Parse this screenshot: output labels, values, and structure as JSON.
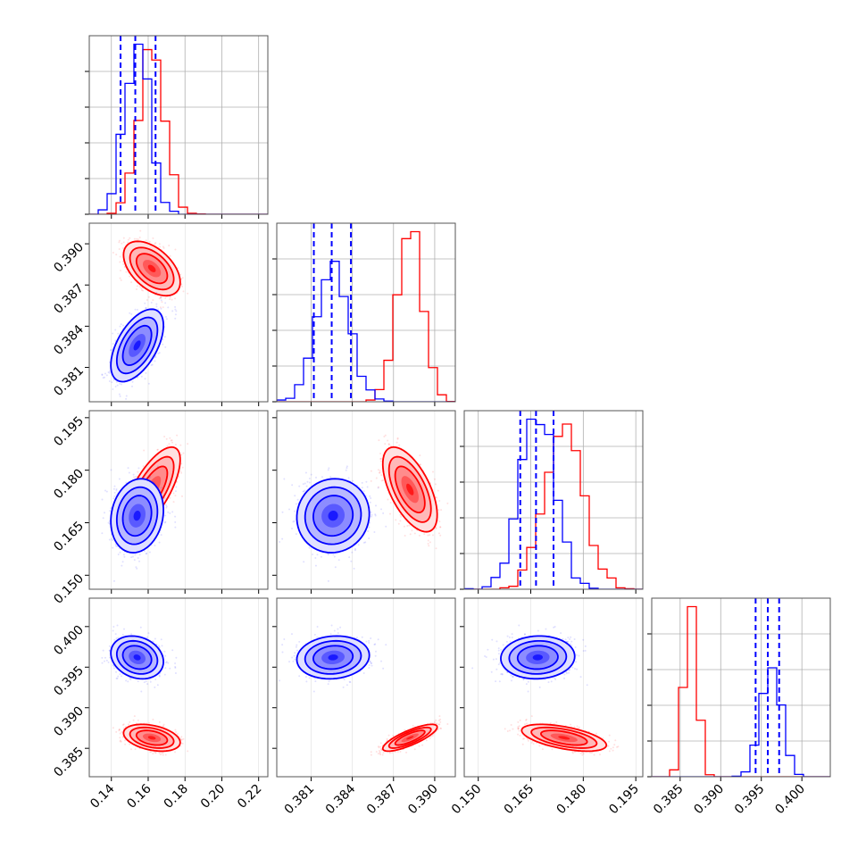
{
  "figure": {
    "type": "corner",
    "n_params": 4,
    "colors": {
      "red": "#ff0000",
      "blue": "#0000ff",
      "grid": "#b0b0b0",
      "frame": "#555555"
    }
  },
  "chart_data": {
    "type": "corner",
    "xlabels": [
      "",
      "",
      "",
      ""
    ],
    "ranges": [
      [
        0.128,
        0.225
      ],
      [
        0.3785,
        0.3915
      ],
      [
        0.146,
        0.197
      ],
      [
        0.3815,
        0.4035
      ]
    ],
    "ticks": [
      {
        "values": [
          0.14,
          0.16,
          0.18,
          0.2,
          0.22
        ],
        "labels": [
          "0.14",
          "0.16",
          "0.18",
          "0.20",
          "0.22"
        ]
      },
      {
        "values": [
          0.381,
          0.384,
          0.387,
          0.39
        ],
        "labels": [
          "0.381",
          "0.384",
          "0.387",
          "0.390"
        ]
      },
      {
        "values": [
          0.15,
          0.165,
          0.18,
          0.195
        ],
        "labels": [
          "0.150",
          "0.165",
          "0.180",
          "0.195"
        ]
      },
      {
        "values": [
          0.385,
          0.39,
          0.395,
          0.4
        ],
        "labels": [
          "0.385",
          "0.390",
          "0.395",
          "0.400"
        ]
      }
    ],
    "series": [
      {
        "color": "#ff0000",
        "mean": [
          0.162,
          0.3882,
          0.1745,
          0.3863
        ],
        "sd": [
          0.007,
          0.0009,
          0.0055,
          0.00075
        ],
        "corr": [
          [
            1,
            -0.5,
            0.7,
            -0.35
          ],
          [
            -0.5,
            1,
            -0.6,
            0.8
          ],
          [
            0.7,
            -0.6,
            1,
            -0.55
          ],
          [
            -0.35,
            0.8,
            -0.55,
            1
          ]
        ]
      },
      {
        "color": "#0000ff",
        "mean": [
          0.154,
          0.3826,
          0.167,
          0.3962
        ],
        "sd": [
          0.0065,
          0.0012,
          0.0048,
          0.0012
        ],
        "corr": [
          [
            1,
            0.55,
            0.15,
            -0.2
          ],
          [
            0.55,
            1,
            0.05,
            0.1
          ],
          [
            0.15,
            0.05,
            1,
            0.05
          ],
          [
            -0.2,
            0.1,
            0.05,
            1
          ]
        ]
      }
    ],
    "quantiles": {
      "color": "#0000ff",
      "values": [
        [
          0.145,
          0.153,
          0.164
        ],
        [
          0.3812,
          0.3825,
          0.3839
        ],
        [
          0.162,
          0.1665,
          0.1715
        ],
        [
          0.3943,
          0.3958,
          0.3972
        ]
      ]
    },
    "legend": "none"
  }
}
